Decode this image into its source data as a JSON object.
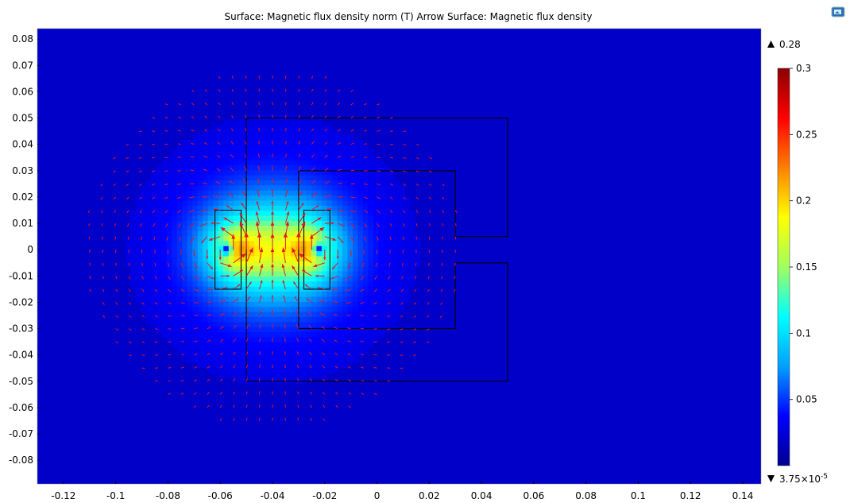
{
  "header": {
    "title": "Surface: Magnetic flux density norm (T)  Arrow Surface: Magnetic flux density",
    "export_icon": "image-export-icon"
  },
  "chart_data": {
    "type": "heatmap",
    "title": "Surface: Magnetic flux density norm (T)  Arrow Surface: Magnetic flux density",
    "xlim": [
      -0.13,
      0.147
    ],
    "ylim": [
      -0.089,
      0.084
    ],
    "x_ticks": [
      -0.12,
      -0.1,
      -0.08,
      -0.06,
      -0.04,
      -0.02,
      0,
      0.02,
      0.04,
      0.06,
      0.08,
      0.1,
      0.12,
      0.14
    ],
    "x_tick_labels": [
      "-0.12",
      "-0.1",
      "-0.08",
      "-0.06",
      "-0.04",
      "-0.02",
      "0",
      "0.02",
      "0.04",
      "0.06",
      "0.08",
      "0.1",
      "0.12",
      "0.14"
    ],
    "y_ticks": [
      0.08,
      0.07,
      0.06,
      0.05,
      0.04,
      0.03,
      0.02,
      0.01,
      0,
      -0.01,
      -0.02,
      -0.03,
      -0.04,
      -0.05,
      -0.06,
      -0.07,
      -0.08
    ],
    "y_tick_labels": [
      "0.08",
      "0.07",
      "0.06",
      "0.05",
      "0.04",
      "0.03",
      "0.02",
      "0.01",
      "0",
      "-0.01",
      "-0.02",
      "-0.03",
      "-0.04",
      "-0.05",
      "-0.06",
      "-0.07",
      "-0.08"
    ],
    "colormap": "rainbow",
    "colormap_stops": [
      "#00008f",
      "#0000ff",
      "#00a0ff",
      "#00ffff",
      "#a0ff60",
      "#ffff00",
      "#ff8000",
      "#ff0000",
      "#8b0000"
    ],
    "color_range": [
      3.75e-05,
      0.3
    ],
    "colorbar": {
      "ticks": [
        0.3,
        0.25,
        0.2,
        0.15,
        0.1,
        0.05
      ],
      "tick_labels": [
        "0.3",
        "0.25",
        "0.2",
        "0.15",
        "0.1",
        "0.05"
      ],
      "max_label": "0.28",
      "min_label_mantissa": "3.75×10",
      "min_label_exponent": "-5"
    },
    "arrow_color": "#e8141e",
    "geometry": {
      "yoke_outer": [
        [
          -0.05,
          0.05
        ],
        [
          0.05,
          0.05
        ],
        [
          0.05,
          0.005
        ],
        [
          0.03,
          0.005
        ],
        [
          0.03,
          0.03
        ],
        [
          -0.03,
          0.03
        ],
        [
          -0.03,
          -0.03
        ],
        [
          0.03,
          -0.03
        ],
        [
          0.03,
          -0.005
        ],
        [
          0.05,
          -0.005
        ],
        [
          0.05,
          -0.05
        ],
        [
          -0.05,
          -0.05
        ]
      ],
      "coil_left": [
        [
          -0.062,
          0.015
        ],
        [
          -0.052,
          0.015
        ],
        [
          -0.052,
          -0.015
        ],
        [
          -0.062,
          -0.015
        ]
      ],
      "coil_right": [
        [
          -0.028,
          0.015
        ],
        [
          -0.018,
          0.015
        ],
        [
          -0.018,
          -0.015
        ],
        [
          -0.028,
          -0.015
        ]
      ],
      "field_core_center": [
        -0.04,
        0
      ],
      "field_peak": 0.28,
      "wire_centers": [
        [
          -0.057,
          0
        ],
        [
          -0.023,
          0
        ]
      ]
    }
  }
}
